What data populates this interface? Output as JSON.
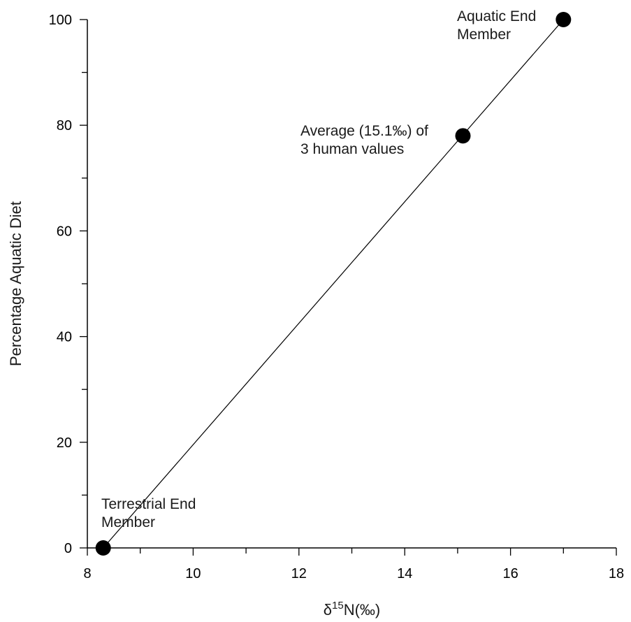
{
  "chart_data": {
    "type": "scatter",
    "xlabel_prefix": "δ",
    "xlabel_sup": "15",
    "xlabel_suffix": "N(‰)",
    "ylabel": "Percentage Aquatic Diet",
    "xlim": [
      8,
      18
    ],
    "ylim": [
      0,
      100
    ],
    "x_ticks": [
      "8",
      "10",
      "12",
      "14",
      "16",
      "18"
    ],
    "y_ticks": [
      "0",
      "20",
      "40",
      "60",
      "80",
      "100"
    ],
    "grid": false,
    "points": [
      {
        "x": 8.3,
        "y": 0,
        "label_lines": [
          "Terrestrial End",
          "Member"
        ]
      },
      {
        "x": 15.1,
        "y": 78,
        "label_lines": [
          "Average (15.1‰) of",
          "3 human values"
        ]
      },
      {
        "x": 17.0,
        "y": 100,
        "label_lines": [
          "Aquatic End",
          "Member"
        ]
      }
    ],
    "line": {
      "from": [
        8.3,
        0
      ],
      "to": [
        17.0,
        100
      ]
    }
  }
}
